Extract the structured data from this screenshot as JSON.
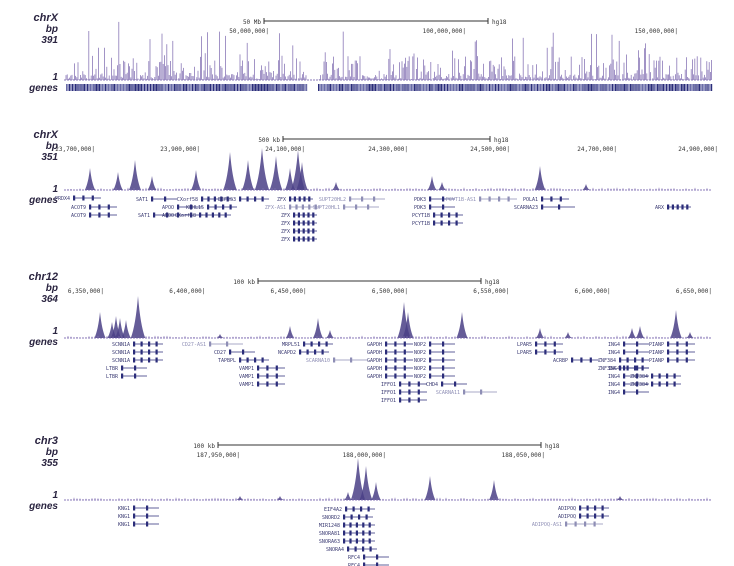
{
  "colors": {
    "signal": "#8a79b8",
    "signal_dark": "#4a3f86",
    "gene": "#2b2d7a",
    "gene_label": "#3a3a72",
    "gene_label_light": "#8e8eb5",
    "axis": "#333333"
  },
  "row_labels": {
    "bp": "bp",
    "one": "1",
    "genes": "genes"
  },
  "chart_data": [
    {
      "type": "area",
      "chrom": "chrX",
      "ymax": "391",
      "ymin_label": "1",
      "scale_text": "50 Mb",
      "assembly": "hg18",
      "ticks": [
        "50,000,000",
        "100,000,000",
        "150,000,000"
      ],
      "genes": []
    },
    {
      "type": "area",
      "chrom": "chrX",
      "ymax": "351",
      "ymin_label": "1",
      "scale_text": "500 kb",
      "assembly": "hg18",
      "ticks": [
        "23,700,000",
        "23,900,000",
        "24,100,000",
        "24,300,000",
        "24,500,000",
        "24,700,000",
        "24,900,000"
      ],
      "genes": [
        "PRDX4",
        "ACOT9",
        "ACOT9",
        "SAT1",
        "SAT1",
        "CXorf58",
        "APOO",
        "APOO",
        "CXorf58",
        "KLHL15",
        "EIF2S3",
        "ZFX",
        "ZFX-AS1",
        "ZFX",
        "ZFX",
        "ZFX",
        "ZFX",
        "SUPT20HL2",
        "SUPT20HL1",
        "PDK3",
        "PDK3",
        "PCYT1B-AS1",
        "PCYT1B",
        "PCYT1B",
        "POLA1",
        "SCARNA23",
        "ARX"
      ]
    },
    {
      "type": "area",
      "chrom": "chr12",
      "ymax": "364",
      "ymin_label": "1",
      "scale_text": "100 kb",
      "assembly": "hg18",
      "ticks": [
        "6,350,000",
        "6,400,000",
        "6,450,000",
        "6,500,000",
        "6,550,000",
        "6,600,000",
        "6,650,000"
      ],
      "genes": [
        "SCNN1A",
        "SCNN1A",
        "SCNN1A",
        "LTBR",
        "LTBR",
        "CD27-AS1",
        "CD27",
        "TAPBPL",
        "VAMP1",
        "VAMP1",
        "VAMP1",
        "MRPL51",
        "NCAPD2",
        "SCARNA10",
        "GAPDH",
        "GAPDH",
        "GAPDH",
        "GAPDH",
        "GAPDH",
        "IFFO1",
        "IFFO1",
        "IFFO1",
        "NOP2",
        "NOP2",
        "NOP2",
        "NOP2",
        "NOP2",
        "CHD4",
        "SCARNA11",
        "LPAR5",
        "LPAR5",
        "ACRBP",
        "ING4",
        "ING4",
        "ING4",
        "ING4",
        "ING4",
        "ING4",
        "ZNF384",
        "ZNF384",
        "ZNF384",
        "ZNF384",
        "PIANP",
        "PIANP",
        "PIANP"
      ]
    },
    {
      "type": "area",
      "chrom": "chr3",
      "ymax": "355",
      "ymin_label": "1",
      "scale_text": "100 kb",
      "assembly": "hg18",
      "ticks": [
        "187,950,000",
        "188,000,000",
        "188,050,000"
      ],
      "genes": [
        "KNG1",
        "KNG1",
        "KNG1",
        "EIF4A2",
        "SNORD2",
        "MIR1248",
        "SNORA81",
        "SNORA63",
        "SNORA4",
        "RFC4",
        "RFC4",
        "ADIPOQ",
        "ADIPOQ",
        "ADIPOQ-AS1"
      ]
    }
  ]
}
